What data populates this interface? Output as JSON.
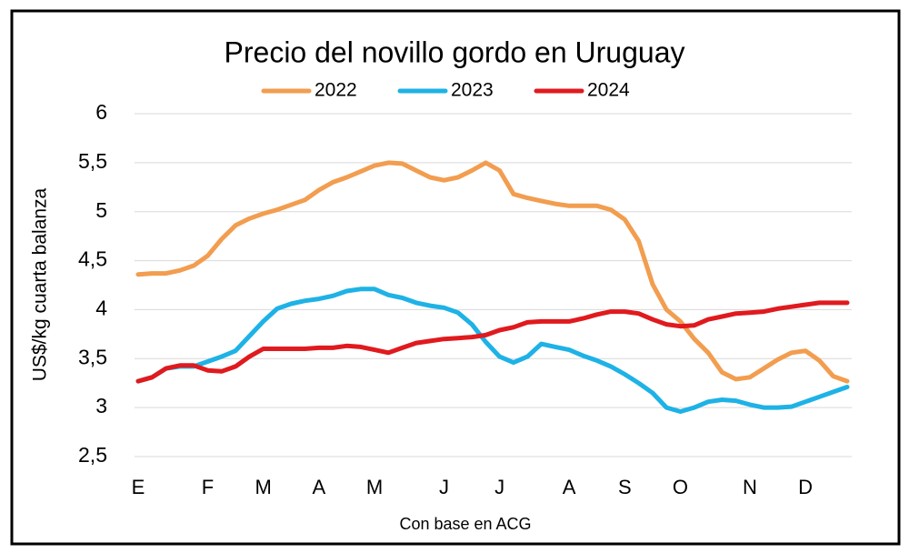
{
  "chart_data": {
    "type": "line",
    "title": "Precio del novillo gordo en Uruguay",
    "ylabel": "US$/kg cuarta balanza",
    "xlabel": "Con base en ACG",
    "categories": [
      "E",
      null,
      null,
      null,
      null,
      "F",
      null,
      null,
      null,
      "M",
      null,
      null,
      null,
      "A",
      null,
      null,
      null,
      "M",
      null,
      null,
      null,
      null,
      "J",
      null,
      null,
      null,
      "J",
      null,
      null,
      null,
      null,
      "A",
      null,
      null,
      null,
      "S",
      null,
      null,
      null,
      "O",
      null,
      null,
      null,
      null,
      "N",
      null,
      null,
      null,
      "D",
      null,
      null,
      null
    ],
    "series": [
      {
        "name": "2022",
        "color": "#f29d4f",
        "values": [
          4.36,
          4.37,
          4.37,
          4.4,
          4.45,
          4.55,
          4.72,
          4.86,
          4.93,
          4.98,
          5.02,
          5.07,
          5.12,
          5.22,
          5.3,
          5.35,
          5.41,
          5.47,
          5.5,
          5.49,
          5.42,
          5.35,
          5.32,
          5.35,
          5.42,
          5.5,
          5.42,
          5.18,
          5.14,
          5.11,
          5.08,
          5.06,
          5.06,
          5.06,
          5.02,
          4.92,
          4.7,
          4.26,
          4.0,
          3.88,
          3.7,
          3.56,
          3.36,
          3.29,
          3.31,
          3.4,
          3.49,
          3.56,
          3.58,
          3.48,
          3.32,
          3.27
        ]
      },
      {
        "name": "2023",
        "color": "#1eb2e6",
        "values": [
          3.27,
          3.31,
          3.4,
          3.42,
          3.42,
          3.47,
          3.52,
          3.58,
          3.73,
          3.88,
          4.01,
          4.06,
          4.09,
          4.11,
          4.14,
          4.19,
          4.21,
          4.21,
          4.15,
          4.12,
          4.07,
          4.04,
          4.02,
          3.97,
          3.85,
          3.67,
          3.52,
          3.46,
          3.52,
          3.65,
          3.62,
          3.59,
          3.53,
          3.48,
          3.42,
          3.34,
          3.25,
          3.15,
          3.0,
          2.96,
          3.0,
          3.06,
          3.08,
          3.07,
          3.03,
          3.0,
          3.0,
          3.01,
          3.06,
          3.11,
          3.16,
          3.21
        ]
      },
      {
        "name": "2024",
        "color": "#e01a1e",
        "values": [
          3.27,
          3.31,
          3.4,
          3.43,
          3.43,
          3.38,
          3.37,
          3.42,
          3.52,
          3.6,
          3.6,
          3.6,
          3.6,
          3.61,
          3.61,
          3.63,
          3.62,
          3.59,
          3.56,
          3.61,
          3.66,
          3.68,
          3.7,
          3.71,
          3.72,
          3.74,
          3.79,
          3.82,
          3.87,
          3.88,
          3.88,
          3.88,
          3.91,
          3.95,
          3.98,
          3.98,
          3.96,
          3.9,
          3.85,
          3.83,
          3.84,
          3.9,
          3.93,
          3.96,
          3.97,
          3.98,
          4.01,
          4.03,
          4.05,
          4.07,
          4.07,
          4.07
        ]
      }
    ],
    "ylim": [
      2.5,
      6
    ],
    "yticks": [
      {
        "value": 2.5,
        "label": "2,5"
      },
      3,
      {
        "value": 3.5,
        "label": "3,5"
      },
      4,
      {
        "value": 4.5,
        "label": "4,5"
      },
      5,
      {
        "value": 5.5,
        "label": "5,5"
      },
      6
    ],
    "grid": true,
    "legend": "top"
  }
}
